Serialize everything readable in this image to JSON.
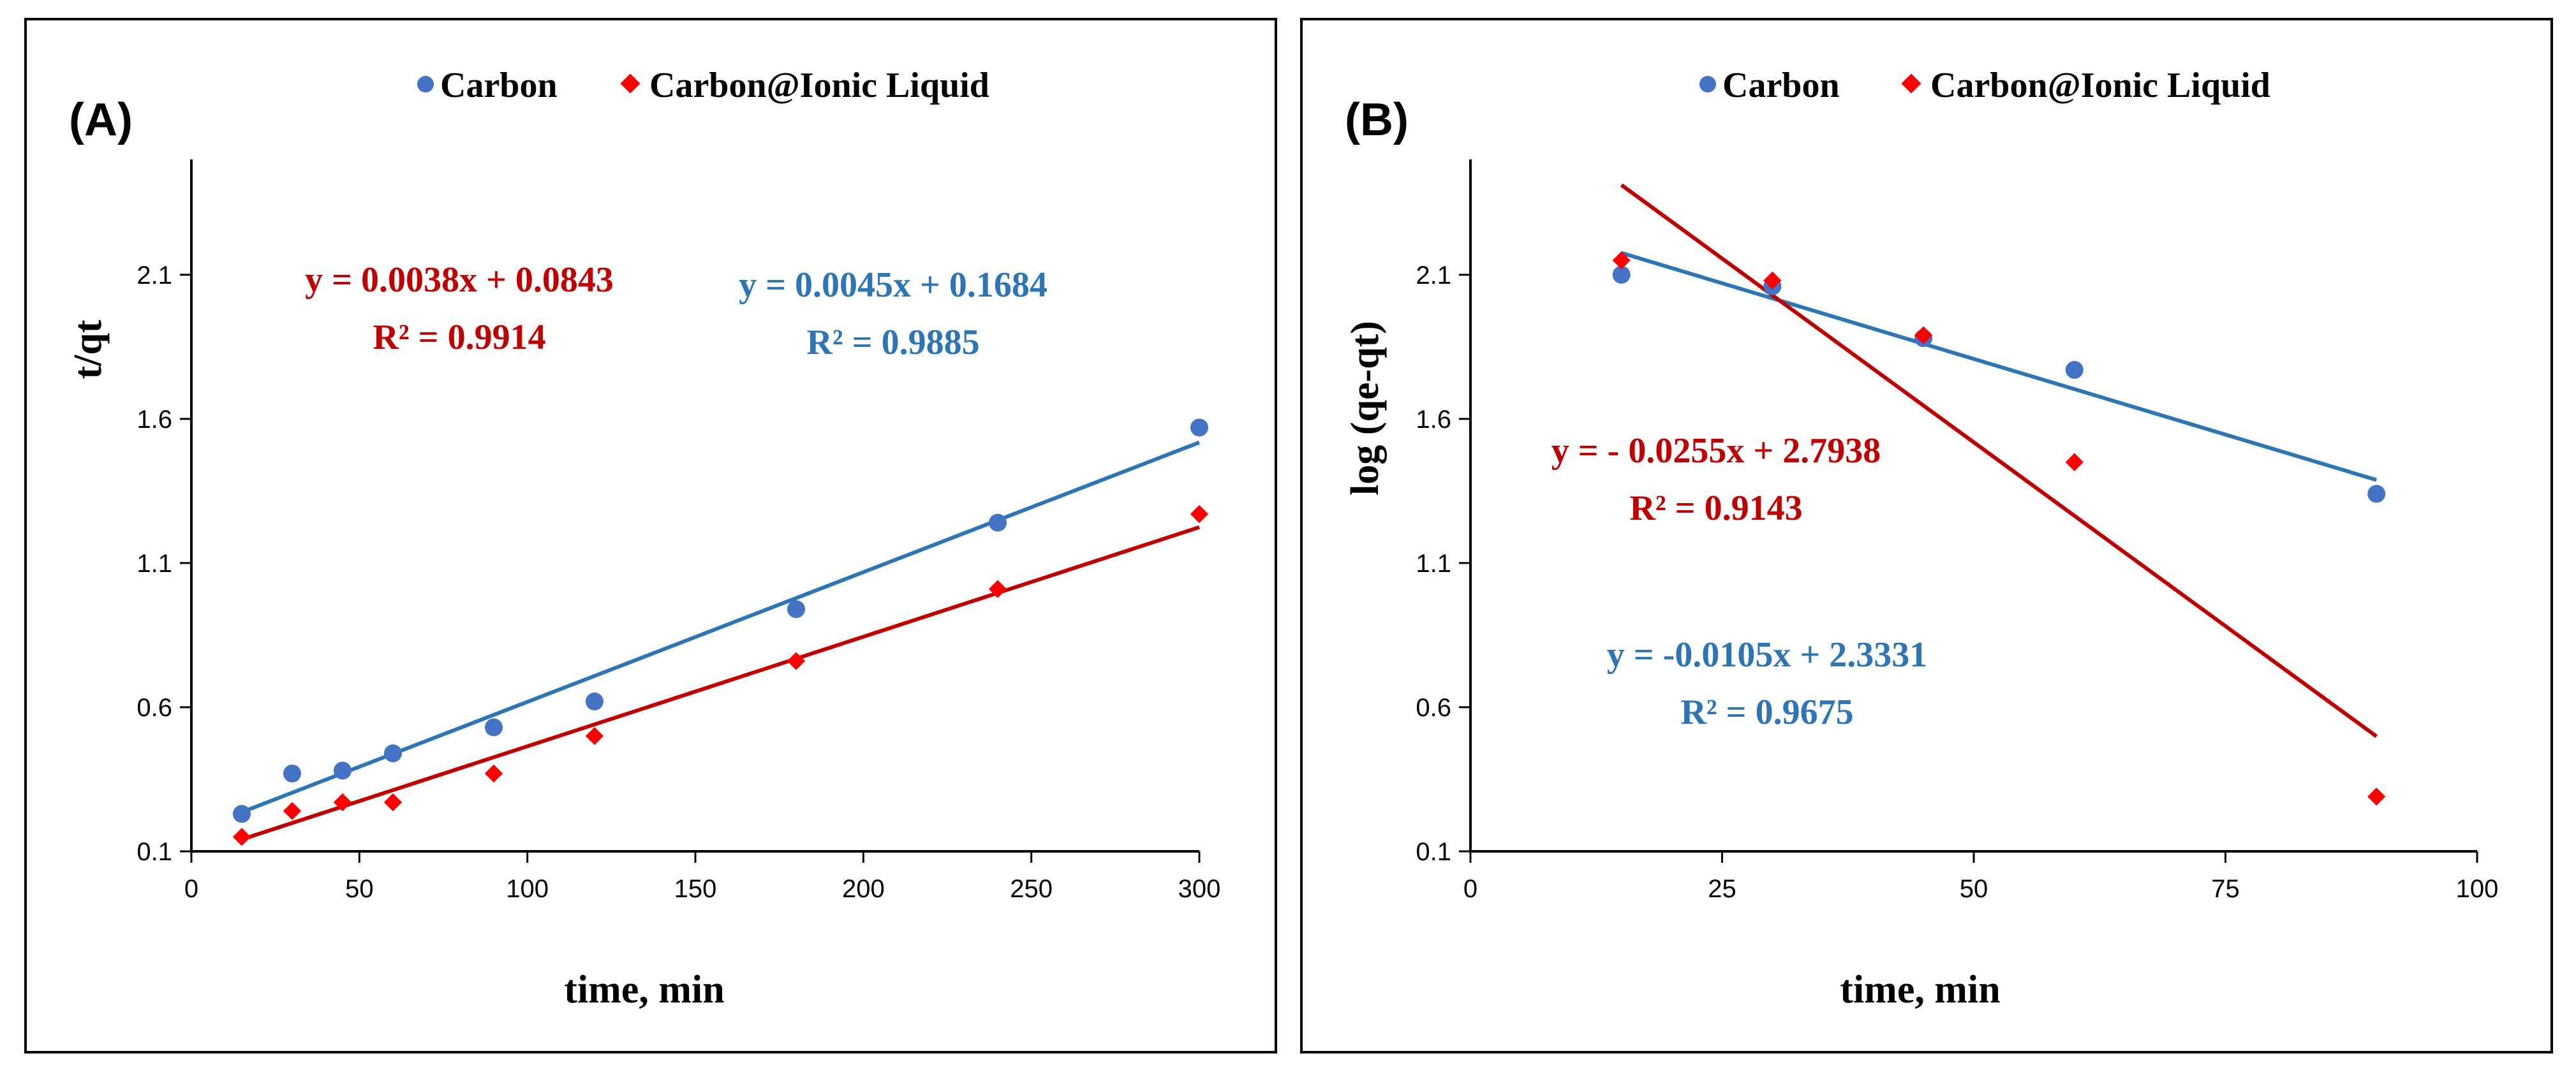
{
  "colors": {
    "carbon": "#4472C4",
    "carbon_line": "#2E75B6",
    "ionic": "#FF0000",
    "ionic_line": "#C00000",
    "eq_carbon": "#2E75B6",
    "eq_ionic": "#C00000"
  },
  "chart_data": [
    {
      "type": "scatter",
      "panel_label": "(A)",
      "xlabel": "time, min",
      "ylabel": "t/qt",
      "xlim": [
        0,
        300
      ],
      "ylim": [
        0.1,
        2.5
      ],
      "xticks": [
        0,
        50,
        100,
        150,
        200,
        250,
        300
      ],
      "yticks": [
        0.1,
        0.6,
        1.1,
        1.6,
        2.1
      ],
      "legend": [
        "Carbon",
        "Carbon@Ionic Liquid"
      ],
      "series": [
        {
          "name": "Carbon",
          "marker": "circle",
          "x": [
            15,
            30,
            45,
            60,
            90,
            120,
            180,
            240,
            300
          ],
          "y": [
            0.23,
            0.37,
            0.38,
            0.44,
            0.53,
            0.62,
            0.94,
            1.24,
            1.57
          ],
          "fit": {
            "slope": 0.0045,
            "intercept": 0.1684,
            "x_range": [
              15,
              300
            ]
          },
          "equation": "y = 0.0045x + 0.1684",
          "r2": "R² = 0.9885"
        },
        {
          "name": "Carbon@Ionic Liquid",
          "marker": "diamond",
          "x": [
            15,
            30,
            45,
            60,
            90,
            120,
            180,
            240,
            300
          ],
          "y": [
            0.15,
            0.24,
            0.27,
            0.27,
            0.37,
            0.5,
            0.76,
            1.01,
            1.27
          ],
          "fit": {
            "slope": 0.0038,
            "intercept": 0.0843,
            "x_range": [
              15,
              300
            ]
          },
          "equation": "y = 0.0038x + 0.0843",
          "r2": "R² = 0.9914"
        }
      ]
    },
    {
      "type": "scatter",
      "panel_label": "(B)",
      "xlabel": "time, min",
      "ylabel": "log (qe-qt)",
      "xlim": [
        0,
        100
      ],
      "ylim": [
        0.1,
        2.5
      ],
      "xticks": [
        0,
        25,
        50,
        75,
        100
      ],
      "yticks": [
        0.1,
        0.6,
        1.1,
        1.6,
        2.1
      ],
      "legend": [
        "Carbon",
        "Carbon@Ionic Liquid"
      ],
      "series": [
        {
          "name": "Carbon",
          "marker": "circle",
          "x": [
            15,
            30,
            45,
            60,
            90
          ],
          "y": [
            2.1,
            2.06,
            1.88,
            1.77,
            1.34
          ],
          "fit": {
            "slope": -0.0105,
            "intercept": 2.3331,
            "x_range": [
              15,
              90
            ]
          },
          "equation": "y = -0.0105x + 2.3331",
          "r2": "R² = 0.9675"
        },
        {
          "name": "Carbon@Ionic Liquid",
          "marker": "diamond",
          "x": [
            15,
            30,
            45,
            60,
            90
          ],
          "y": [
            2.15,
            2.08,
            1.89,
            1.45,
            0.29
          ],
          "fit": {
            "slope": -0.0255,
            "intercept": 2.7938,
            "x_range": [
              15,
              90
            ]
          },
          "equation": "y = - 0.0255x + 2.7938",
          "r2": "R² = 0.9143"
        }
      ]
    }
  ]
}
